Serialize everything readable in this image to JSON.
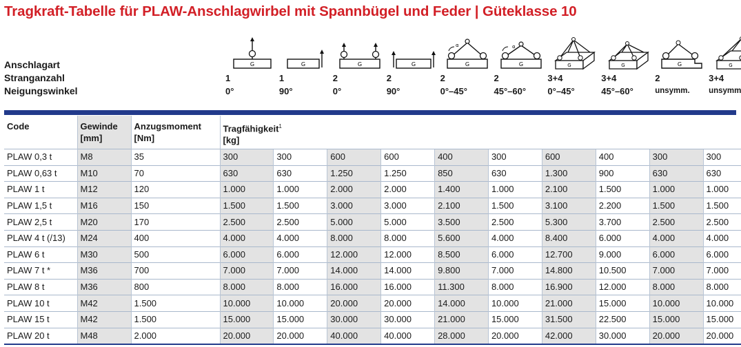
{
  "title": "Tragkraft-Tabelle für PLAW-Anschlagwirbel mit Spannbügel und Feder | Güteklasse 10",
  "row_labels": [
    "Anschlagart",
    "Stranganzahl",
    "Neigungswinkel"
  ],
  "methods": [
    {
      "strands": "1",
      "angle": "0°",
      "icon": "single-vertical-icon"
    },
    {
      "strands": "1",
      "angle": "90°",
      "icon": "single-side-pull-icon"
    },
    {
      "strands": "2",
      "angle": "0°",
      "icon": "double-vertical-icon"
    },
    {
      "strands": "2",
      "angle": "90°",
      "icon": "double-side-pull-icon"
    },
    {
      "strands": "2",
      "angle": "0°–45°",
      "icon": "two-leg-0-45-icon"
    },
    {
      "strands": "2",
      "angle": "45°–60°",
      "icon": "two-leg-45-60-icon"
    },
    {
      "strands": "3+4",
      "angle": "0°–45°",
      "icon": "four-leg-0-45-icon"
    },
    {
      "strands": "3+4",
      "angle": "45°–60°",
      "icon": "four-leg-45-60-icon"
    },
    {
      "strands": "2",
      "angle": "unsymm.",
      "icon": "two-leg-asym-icon"
    },
    {
      "strands": "3+4",
      "angle": "unsymm.",
      "icon": "four-leg-asym-icon"
    }
  ],
  "table": {
    "headers": {
      "code": "Code",
      "thread": [
        "Gewinde",
        "[mm]"
      ],
      "torque": [
        "Anzugsmoment",
        "[Nm]"
      ],
      "capacity": [
        "Tragfähigkeit",
        "[kg]"
      ],
      "footnote": "1"
    },
    "rows": [
      {
        "code": "PLAW 0,3 t",
        "thread": "M8",
        "torque": "35",
        "values": [
          "300",
          "300",
          "600",
          "600",
          "400",
          "300",
          "600",
          "400",
          "300",
          "300"
        ]
      },
      {
        "code": "PLAW 0,63 t",
        "thread": "M10",
        "torque": "70",
        "values": [
          "630",
          "630",
          "1.250",
          "1.250",
          "850",
          "630",
          "1.300",
          "900",
          "630",
          "630"
        ]
      },
      {
        "code": "PLAW 1 t",
        "thread": "M12",
        "torque": "120",
        "values": [
          "1.000",
          "1.000",
          "2.000",
          "2.000",
          "1.400",
          "1.000",
          "2.100",
          "1.500",
          "1.000",
          "1.000"
        ]
      },
      {
        "code": "PLAW 1,5 t",
        "thread": "M16",
        "torque": "150",
        "values": [
          "1.500",
          "1.500",
          "3.000",
          "3.000",
          "2.100",
          "1.500",
          "3.100",
          "2.200",
          "1.500",
          "1.500"
        ]
      },
      {
        "code": "PLAW 2,5 t",
        "thread": "M20",
        "torque": "170",
        "values": [
          "2.500",
          "2.500",
          "5.000",
          "5.000",
          "3.500",
          "2.500",
          "5.300",
          "3.700",
          "2.500",
          "2.500"
        ]
      },
      {
        "code": "PLAW 4 t (/13)",
        "thread": "M24",
        "torque": "400",
        "values": [
          "4.000",
          "4.000",
          "8.000",
          "8.000",
          "5.600",
          "4.000",
          "8.400",
          "6.000",
          "4.000",
          "4.000"
        ]
      },
      {
        "code": "PLAW 6 t",
        "thread": "M30",
        "torque": "500",
        "values": [
          "6.000",
          "6.000",
          "12.000",
          "12.000",
          "8.500",
          "6.000",
          "12.700",
          "9.000",
          "6.000",
          "6.000"
        ]
      },
      {
        "code": "PLAW 7 t *",
        "thread": "M36",
        "torque": "700",
        "values": [
          "7.000",
          "7.000",
          "14.000",
          "14.000",
          "9.800",
          "7.000",
          "14.800",
          "10.500",
          "7.000",
          "7.000"
        ]
      },
      {
        "code": "PLAW 8 t",
        "thread": "M36",
        "torque": "800",
        "values": [
          "8.000",
          "8.000",
          "16.000",
          "16.000",
          "11.300",
          "8.000",
          "16.900",
          "12.000",
          "8.000",
          "8.000"
        ]
      },
      {
        "code": "PLAW 10 t",
        "thread": "M42",
        "torque": "1.500",
        "values": [
          "10.000",
          "10.000",
          "20.000",
          "20.000",
          "14.000",
          "10.000",
          "21.000",
          "15.000",
          "10.000",
          "10.000"
        ]
      },
      {
        "code": "PLAW 15 t",
        "thread": "M42",
        "torque": "1.500",
        "values": [
          "15.000",
          "15.000",
          "30.000",
          "30.000",
          "21.000",
          "15.000",
          "31.500",
          "22.500",
          "15.000",
          "15.000"
        ]
      },
      {
        "code": "PLAW 20 t",
        "thread": "M48",
        "torque": "2.000",
        "values": [
          "20.000",
          "20.000",
          "40.000",
          "40.000",
          "28.000",
          "20.000",
          "42.000",
          "30.000",
          "20.000",
          "20.000"
        ]
      }
    ]
  },
  "colors": {
    "title": "#d21f26",
    "rule": "#223a8b",
    "shade": "#e3e3e3"
  }
}
